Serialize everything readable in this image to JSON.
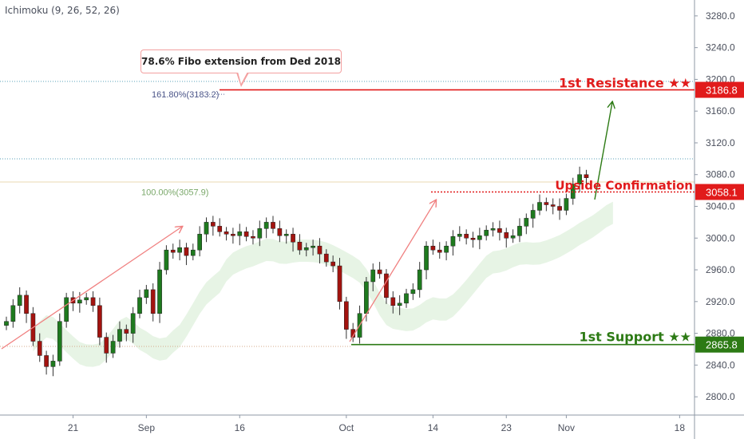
{
  "indicator_label": "Ichimoku (9, 26, 52, 26)",
  "callout_text": "78.6% Fibo extension from Ded 2018",
  "fib": {
    "upper_label": "161.80%(3183.2)",
    "lower_label": "100.00%(3057.9)"
  },
  "annotations": {
    "resistance": "1st Resistance ★★",
    "confirmation": "Upside Confirmation",
    "support": "1st Support ★★"
  },
  "price_tags": {
    "resistance": "3186.8",
    "confirmation": "3058.1",
    "support": "2865.8"
  },
  "chart_data": {
    "type": "candlestick",
    "y_ticks": [
      "2800.0",
      "2840.0",
      "2880.0",
      "2920.0",
      "2960.0",
      "3000.0",
      "3040.0",
      "3080.0",
      "3120.0",
      "3160.0",
      "3200.0",
      "3240.0",
      "3280.0"
    ],
    "ylim": [
      2777,
      3300
    ],
    "x_ticks": [
      {
        "label": "21",
        "index": 10
      },
      {
        "label": "Sep",
        "index": 21
      },
      {
        "label": "16",
        "index": 35
      },
      {
        "label": "Oct",
        "index": 51
      },
      {
        "label": "14",
        "index": 64
      },
      {
        "label": "23",
        "index": 75
      },
      {
        "label": "Nov",
        "index": 84
      },
      {
        "label": "18",
        "index": 101
      }
    ],
    "close": [
      2895,
      2915,
      2928,
      2905,
      2870,
      2852,
      2838,
      2845,
      2895,
      2925,
      2918,
      2922,
      2925,
      2915,
      2875,
      2855,
      2870,
      2885,
      2880,
      2905,
      2925,
      2935,
      2905,
      2960,
      2985,
      2982,
      2988,
      2978,
      2985,
      3005,
      3020,
      3015,
      3008,
      3005,
      3003,
      3008,
      3002,
      3000,
      3012,
      3020,
      3012,
      3003,
      3005,
      2995,
      2985,
      2988,
      2990,
      2980,
      2970,
      2965,
      2920,
      2885,
      2875,
      2905,
      2945,
      2960,
      2955,
      2925,
      2915,
      2918,
      2930,
      2935,
      2960,
      2990,
      2985,
      2982,
      2990,
      3002,
      3005,
      3000,
      2998,
      3003,
      3010,
      3012,
      3007,
      3000,
      3003,
      3015,
      3025,
      3035,
      3045,
      3042,
      3040,
      3035,
      3050,
      3068,
      3080,
      3076
    ],
    "levels": {
      "resistance": 3186.8,
      "fib_161_8": 3183.2,
      "confirmation": 3058.1,
      "fib_100": 3057.9,
      "support": 2865.8
    },
    "colors": {
      "up": "#1e7a1e",
      "down": "#a3130f",
      "resistance": "#e11b1b",
      "support": "#2c7a14",
      "arrow": "#f08080",
      "projection": "#2c7a14"
    }
  }
}
